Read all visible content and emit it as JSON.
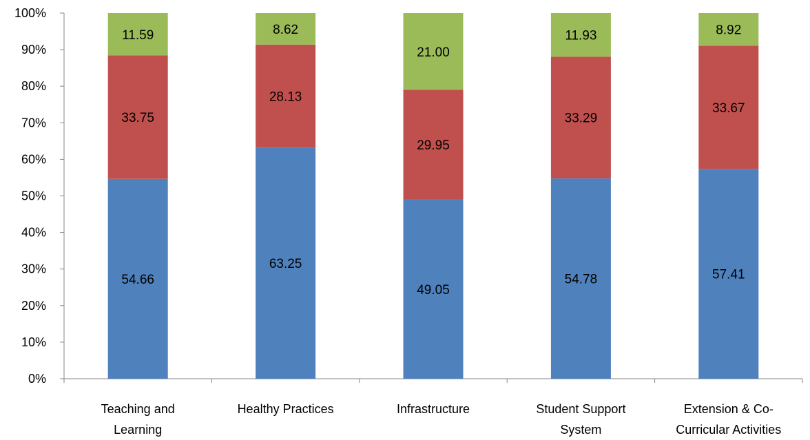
{
  "chart_data": {
    "type": "bar",
    "stacked": "percent",
    "title": "",
    "xlabel": "",
    "ylabel": "",
    "ylim": [
      0,
      100
    ],
    "y_ticks": [
      "0%",
      "10%",
      "20%",
      "30%",
      "40%",
      "50%",
      "60%",
      "70%",
      "80%",
      "90%",
      "100%"
    ],
    "grid": false,
    "legend": "none",
    "categories": [
      [
        "Teaching and",
        "Learning"
      ],
      [
        "Healthy Practices"
      ],
      [
        "Infrastructure"
      ],
      [
        "Student Support",
        "System"
      ],
      [
        "Extension & Co-",
        "Curricular Activities"
      ]
    ],
    "series": [
      {
        "color": "#4F81BD",
        "values": [
          54.66,
          63.25,
          49.05,
          54.78,
          57.41
        ],
        "labels": [
          "54.66",
          "63.25",
          "49.05",
          "54.78",
          "57.41"
        ]
      },
      {
        "color": "#C0504D",
        "values": [
          33.75,
          28.13,
          29.95,
          33.29,
          33.67
        ],
        "labels": [
          "33.75",
          "28.13",
          "29.95",
          "33.29",
          "33.67"
        ]
      },
      {
        "color": "#9BBB59",
        "values": [
          11.59,
          8.62,
          21.0,
          11.93,
          8.92
        ],
        "labels": [
          "11.59",
          "8.62",
          "21.00",
          "11.93",
          "8.92"
        ]
      }
    ]
  }
}
